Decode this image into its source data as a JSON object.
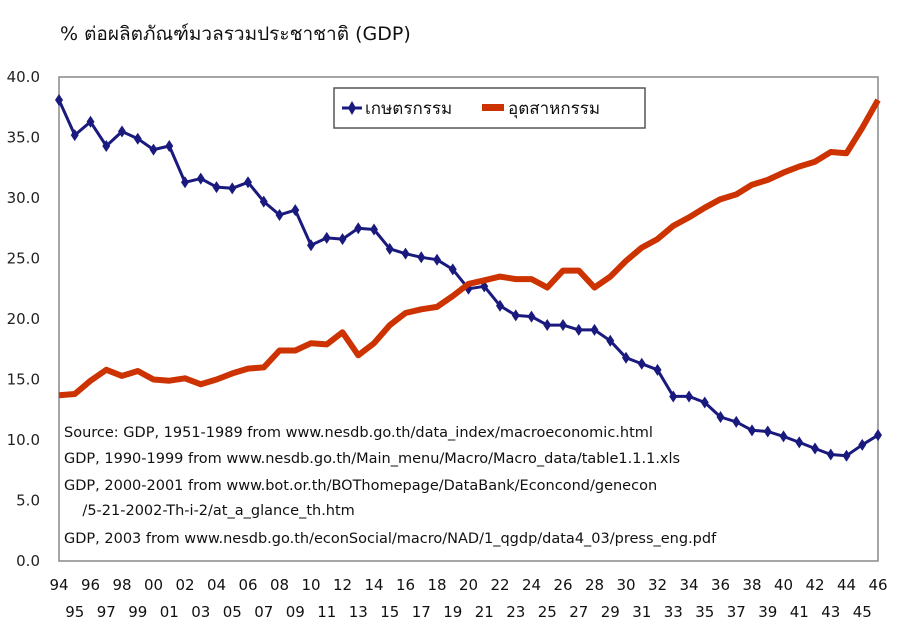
{
  "chart_data": {
    "type": "line",
    "title": "% ต่อผลิตภัณฑ์มวลรวมประชาชาติ (GDP)",
    "xlabel": "",
    "ylabel": "",
    "ylim": [
      0,
      40
    ],
    "yticks": [
      "0.0",
      "5.0",
      "10.0",
      "15.0",
      "20.0",
      "25.0",
      "30.0",
      "35.0",
      "40.0"
    ],
    "ytick_values": [
      0,
      5,
      10,
      15,
      20,
      25,
      30,
      35,
      40
    ],
    "grid": false,
    "legend_position": "top-center",
    "categories": [
      "94",
      "95",
      "96",
      "97",
      "98",
      "99",
      "00",
      "01",
      "02",
      "03",
      "04",
      "05",
      "06",
      "07",
      "08",
      "09",
      "10",
      "11",
      "12",
      "13",
      "14",
      "15",
      "16",
      "17",
      "18",
      "19",
      "20",
      "21",
      "22",
      "23",
      "24",
      "25",
      "26",
      "27",
      "28",
      "29",
      "30",
      "31",
      "32",
      "33",
      "34",
      "35",
      "36",
      "37",
      "38",
      "39",
      "40",
      "41",
      "42",
      "43",
      "44",
      "45",
      "46"
    ],
    "series": [
      {
        "name": "เกษตรกรรม",
        "color": "#1a1a7e",
        "marker": "diamond",
        "values": [
          38.1,
          35.2,
          36.3,
          34.3,
          35.5,
          34.9,
          34.0,
          34.3,
          31.3,
          31.6,
          30.9,
          30.8,
          31.3,
          29.7,
          28.6,
          29.0,
          26.1,
          26.7,
          26.6,
          27.5,
          27.4,
          25.8,
          25.4,
          25.1,
          24.9,
          24.1,
          22.5,
          22.7,
          21.1,
          20.3,
          20.2,
          19.5,
          19.5,
          19.1,
          19.1,
          18.2,
          16.8,
          16.3,
          15.8,
          13.6,
          13.6,
          13.1,
          11.9,
          11.5,
          10.8,
          10.7,
          10.3,
          9.8,
          9.3,
          8.8,
          8.7,
          9.6,
          10.4
        ]
      },
      {
        "name": "อุตสาหกรรม",
        "color": "#cc3300",
        "marker": "none",
        "values": [
          13.7,
          13.8,
          14.9,
          15.8,
          15.3,
          15.7,
          15.0,
          14.9,
          15.1,
          14.6,
          15.0,
          15.5,
          15.9,
          16.0,
          17.4,
          17.4,
          18.0,
          17.9,
          18.9,
          17.0,
          18.0,
          19.5,
          20.5,
          20.8,
          21.0,
          21.9,
          22.9,
          23.2,
          23.5,
          23.3,
          23.3,
          22.6,
          24.0,
          24.0,
          22.6,
          23.5,
          24.8,
          25.9,
          26.6,
          27.7,
          28.4,
          29.2,
          29.9,
          30.3,
          31.1,
          31.5,
          32.1,
          32.6,
          33.0,
          33.8,
          33.7,
          35.8,
          38.1
        ]
      }
    ],
    "annotations": [
      "Source: GDP, 1951-1989 from www.nesdb.go.th/data_index/macroeconomic.html",
      "GDP, 1990-1999 from www.nesdb.go.th/Main_menu/Macro/Macro_data/table1.1.1.xls",
      "GDP, 2000-2001 from www.bot.or.th/BOThomepage/DataBank/Econcond/genecon",
      "    /5-21-2002-Th-i-2/at_a_glance_th.htm",
      "GDP, 2003 from www.nesdb.go.th/econSocial/macro/NAD/1_qgdp/data4_03/press_eng.pdf"
    ]
  }
}
